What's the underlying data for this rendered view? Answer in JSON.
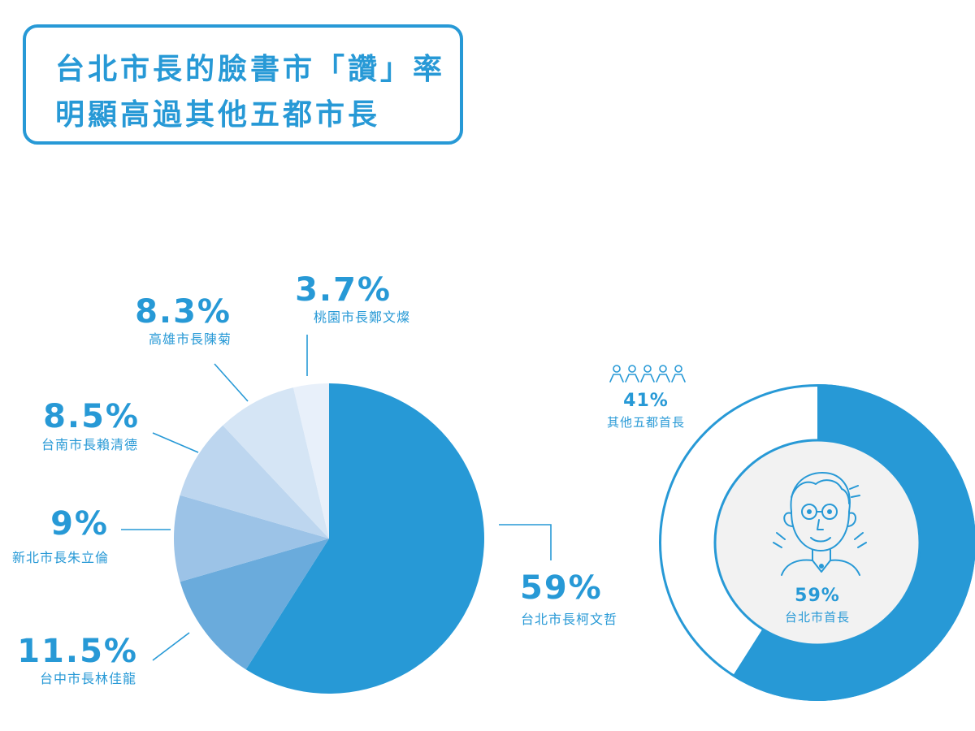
{
  "title": {
    "line1": "台北市長的臉書市「讚」率",
    "line2": "明顯高過其他五都市長"
  },
  "colors": {
    "accent": "#2799d6",
    "slice_shades": [
      "#2799d6",
      "#6aabdc",
      "#9cc3e7",
      "#bdd6ef",
      "#d5e5f5",
      "#e8f0fa"
    ]
  },
  "chart_data": [
    {
      "type": "pie",
      "categories": [
        "台北市長柯文哲",
        "台中市長林佳龍",
        "新北市長朱立倫",
        "台南市長賴清德",
        "高雄市長陳菊",
        "桃園市長鄭文燦"
      ],
      "values": [
        59,
        11.5,
        9,
        8.5,
        8.3,
        3.7
      ],
      "labels": [
        "59%",
        "11.5%",
        "9%",
        "8.5%",
        "8.3%",
        "3.7%"
      ]
    },
    {
      "type": "pie",
      "variant": "donut",
      "categories": [
        "台北市首長",
        "其他五都首長"
      ],
      "values": [
        59,
        41
      ],
      "labels": [
        "59%",
        "41%"
      ]
    }
  ]
}
